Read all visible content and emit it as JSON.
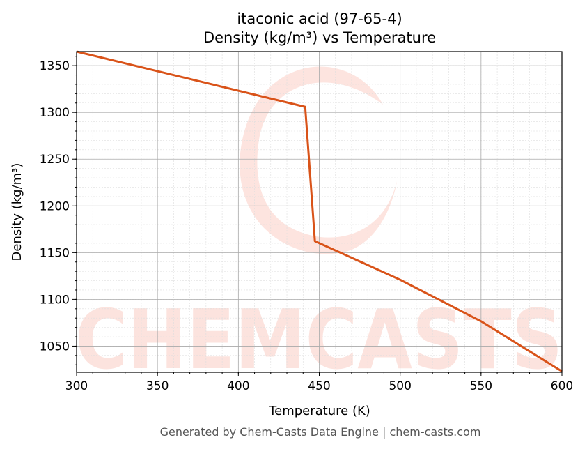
{
  "chart_data": {
    "type": "line",
    "title": "itaconic acid (97-65-4)",
    "subtitle": "Density (kg/m³) vs Temperature",
    "xlabel": "Temperature (K)",
    "ylabel": "Density (kg/m³)",
    "xlim": [
      300,
      600
    ],
    "ylim": [
      1022,
      1365
    ],
    "xticks": [
      300,
      350,
      400,
      450,
      500,
      550,
      600
    ],
    "yticks": [
      1050,
      1100,
      1150,
      1200,
      1250,
      1300,
      1350
    ],
    "grid": true,
    "line_color": "#d95319",
    "series": [
      {
        "x": [
          300,
          441.3,
          447.3,
          500,
          550,
          600
        ],
        "y": [
          1365,
          1305.9,
          1162.3,
          1121,
          1076.6,
          1023
        ]
      }
    ],
    "watermark": "CHEMCASTS",
    "footer": "Generated by Chem-Casts Data Engine | chem-casts.com"
  }
}
